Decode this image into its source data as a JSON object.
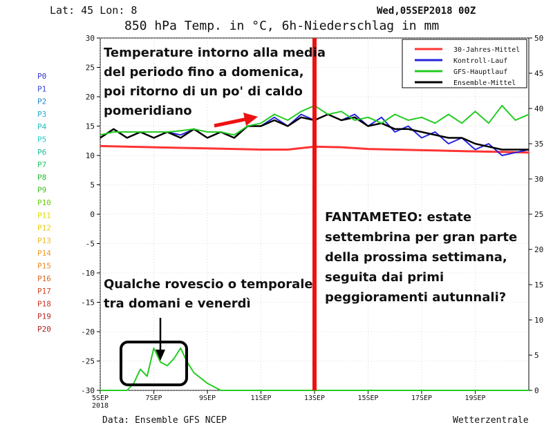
{
  "header": {
    "latlon": "Lat: 45 Lon: 8",
    "date": "Wed,05SEP2018 00Z",
    "title": "850 hPa Temp. in °C, 6h-Niederschlag in mm"
  },
  "footer": {
    "source": "Data: Ensemble GFS NCEP",
    "brand": "Wetterzentrale"
  },
  "legend": [
    {
      "label": "30-Jahres-Mittel",
      "color": "#ff3333"
    },
    {
      "label": "Kontroll-Lauf",
      "color": "#2222dd"
    },
    {
      "label": "GFS-Hauptlauf",
      "color": "#22cc22"
    },
    {
      "label": "Ensemble-Mittel",
      "color": "#000000"
    }
  ],
  "members": [
    {
      "label": "P0",
      "color": "#3333cc"
    },
    {
      "label": "P1",
      "color": "#3344cc"
    },
    {
      "label": "P2",
      "color": "#2288cc"
    },
    {
      "label": "P3",
      "color": "#22aacc"
    },
    {
      "label": "P4",
      "color": "#22bbbb"
    },
    {
      "label": "P5",
      "color": "#22cccc"
    },
    {
      "label": "P6",
      "color": "#22bb99"
    },
    {
      "label": "P7",
      "color": "#22cc66"
    },
    {
      "label": "P8",
      "color": "#22bb33"
    },
    {
      "label": "P9",
      "color": "#44bb22"
    },
    {
      "label": "P10",
      "color": "#66cc11"
    },
    {
      "label": "P11",
      "color": "#dddd00"
    },
    {
      "label": "P12",
      "color": "#eecc00"
    },
    {
      "label": "P13",
      "color": "#eebb22"
    },
    {
      "label": "P14",
      "color": "#ee9922"
    },
    {
      "label": "P15",
      "color": "#ee8822"
    },
    {
      "label": "P16",
      "color": "#dd6622"
    },
    {
      "label": "P17",
      "color": "#cc4422"
    },
    {
      "label": "P18",
      "color": "#cc3322"
    },
    {
      "label": "P19",
      "color": "#bb2222"
    },
    {
      "label": "P20",
      "color": "#aa2222"
    }
  ],
  "annotations": {
    "top_left": [
      "Temperature intorno alla media",
      "del periodo fino a domenica,",
      "poi ritorno di un po' di caldo",
      "pomeridiano"
    ],
    "bottom_left": [
      "Qualche rovescio o temporale",
      "tra domani e venerdì"
    ],
    "right": [
      "FANTAMETEO: estate",
      "settembrina per gran parte",
      "della prossima settimana,",
      "seguita dai primi",
      "peggioramenti autunnali?"
    ]
  },
  "chart_data": {
    "type": "line",
    "x_labels": [
      "5SEP",
      "7SEP",
      "9SEP",
      "11SEP",
      "13SEP",
      "15SEP",
      "17SEP",
      "19SEP"
    ],
    "x_sublabel": "2018",
    "x_days": [
      5,
      21
    ],
    "left_axis": {
      "range": [
        -30,
        30
      ],
      "ticks": [
        30,
        25,
        20,
        15,
        10,
        5,
        0,
        -5,
        -10,
        -15,
        -20,
        -25,
        -30
      ]
    },
    "right_axis": {
      "range": [
        0,
        50
      ],
      "ticks": [
        50,
        45,
        40,
        35,
        30,
        25,
        20,
        15,
        10,
        5,
        0
      ]
    },
    "marker_day": 13,
    "series": [
      {
        "name": "30-Jahres-Mittel",
        "axis": "temp",
        "x": [
          5,
          6,
          7,
          8,
          9,
          10,
          11,
          12,
          13,
          14,
          15,
          16,
          17,
          18,
          19,
          20,
          21
        ],
        "values": [
          11.6,
          11.5,
          11.4,
          11.3,
          11.2,
          11.1,
          11.0,
          11.0,
          11.5,
          11.4,
          11.1,
          11.0,
          10.9,
          10.8,
          10.7,
          10.6,
          10.5
        ]
      },
      {
        "name": "Kontroll-Lauf",
        "axis": "temp",
        "x": [
          5,
          5.5,
          6,
          6.5,
          7,
          7.5,
          8,
          8.5,
          9,
          9.5,
          10,
          10.5,
          11,
          11.5,
          12,
          12.5,
          13,
          13.5,
          14,
          14.5,
          15,
          15.5,
          16,
          16.5,
          17,
          17.5,
          18,
          18.5,
          19,
          19.5,
          20,
          20.5,
          21
        ],
        "values": [
          13,
          14.5,
          13,
          14,
          13,
          14,
          13.5,
          14.5,
          13,
          14,
          13,
          15,
          15,
          16.5,
          15,
          17,
          16,
          17,
          16,
          17,
          15,
          16.5,
          14,
          15,
          13,
          14,
          12,
          13,
          11,
          12,
          10,
          10.5,
          11
        ]
      },
      {
        "name": "GFS-Hauptlauf",
        "axis": "temp",
        "x": [
          5,
          5.5,
          6,
          6.5,
          7,
          7.5,
          8,
          8.5,
          9,
          9.5,
          10,
          10.5,
          11,
          11.5,
          12,
          12.5,
          13,
          13.5,
          14,
          14.5,
          15,
          15.5,
          16,
          16.5,
          17,
          17.5,
          18,
          18.5,
          19,
          19.5,
          20,
          20.5,
          21
        ],
        "values": [
          13.5,
          14,
          14,
          14,
          14,
          14,
          14.2,
          14.5,
          14,
          14,
          13.5,
          15,
          15.5,
          17,
          16,
          17.5,
          18.5,
          17,
          17.5,
          16,
          16.5,
          15.5,
          17,
          16,
          16.5,
          15.5,
          17,
          15.5,
          17.5,
          15.5,
          18.5,
          16,
          17
        ]
      },
      {
        "name": "Ensemble-Mittel",
        "axis": "temp",
        "x": [
          5,
          5.5,
          6,
          6.5,
          7,
          7.5,
          8,
          8.5,
          9,
          9.5,
          10,
          10.5,
          11,
          11.5,
          12,
          12.5,
          13,
          13.5,
          14,
          14.5,
          15,
          15.5,
          16,
          16.5,
          17,
          17.5,
          18,
          18.5,
          19,
          19.5,
          20,
          20.5,
          21
        ],
        "values": [
          13,
          14.5,
          13,
          14,
          13,
          14,
          13,
          14.5,
          13,
          14,
          13,
          15,
          15,
          16,
          15,
          16.5,
          16,
          17,
          16,
          16.5,
          15,
          15.5,
          14.5,
          14.5,
          14,
          13.5,
          13,
          13,
          12,
          11.5,
          11,
          11,
          11
        ]
      },
      {
        "name": "GFS-Hauptlauf Niederschlag",
        "axis": "precip",
        "x": [
          5,
          5.5,
          6,
          6.25,
          6.5,
          6.75,
          7,
          7.25,
          7.5,
          7.75,
          8,
          8.25,
          8.5,
          9,
          9.5,
          10,
          10.5,
          11,
          21
        ],
        "values": [
          0,
          0,
          0,
          1,
          3,
          2,
          6,
          4,
          3.5,
          4.5,
          6,
          4,
          2.5,
          1,
          0,
          0,
          0,
          0,
          0
        ]
      }
    ]
  }
}
